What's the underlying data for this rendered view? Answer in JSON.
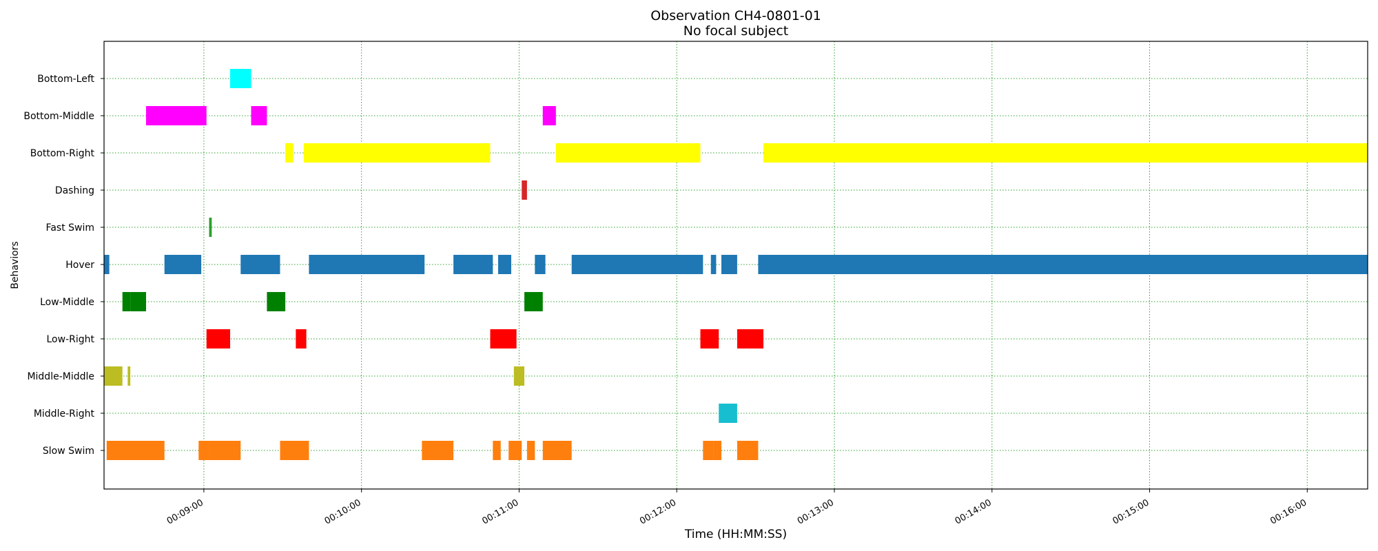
{
  "chart_data": {
    "type": "timeline",
    "title": "Observation CH4-0801-01",
    "subtitle": "No focal subject",
    "xlabel": "Time (HH:MM:SS)",
    "ylabel": "Behaviors",
    "xlim": [
      "00:08:22",
      "00:16:23"
    ],
    "x_ticks": [
      "00:09:00",
      "00:10:00",
      "00:11:00",
      "00:12:00",
      "00:13:00",
      "00:14:00",
      "00:15:00",
      "00:16:00"
    ],
    "grid": true,
    "behaviors": [
      {
        "name": "Bottom-Left",
        "color": "#00ffff",
        "intervals": [
          [
            "00:09:10",
            "00:09:18"
          ]
        ]
      },
      {
        "name": "Bottom-Middle",
        "color": "#ff00ff",
        "intervals": [
          [
            "00:08:38",
            "00:09:01"
          ],
          [
            "00:09:18",
            "00:09:24"
          ],
          [
            "00:11:09",
            "00:11:14"
          ]
        ]
      },
      {
        "name": "Bottom-Right",
        "color": "#ffff00",
        "intervals": [
          [
            "00:09:31",
            "00:09:34"
          ],
          [
            "00:09:38",
            "00:10:49"
          ],
          [
            "00:11:14",
            "00:12:09"
          ],
          [
            "00:12:33",
            "00:16:23"
          ]
        ]
      },
      {
        "name": "Dashing",
        "color": "#d62728",
        "intervals": [
          [
            "00:11:01",
            "00:11:03"
          ]
        ]
      },
      {
        "name": "Fast Swim",
        "color": "#2ca02c",
        "intervals": [
          [
            "00:09:02",
            "00:09:03"
          ]
        ]
      },
      {
        "name": "Hover",
        "color": "#1f77b4",
        "intervals": [
          [
            "00:08:22",
            "00:08:24"
          ],
          [
            "00:08:45",
            "00:08:59"
          ],
          [
            "00:09:14",
            "00:09:29"
          ],
          [
            "00:09:40",
            "00:10:24"
          ],
          [
            "00:10:35",
            "00:10:50"
          ],
          [
            "00:10:52",
            "00:10:57"
          ],
          [
            "00:11:06",
            "00:11:10"
          ],
          [
            "00:11:20",
            "00:12:10"
          ],
          [
            "00:12:13",
            "00:12:15"
          ],
          [
            "00:12:17",
            "00:12:23"
          ],
          [
            "00:12:31",
            "00:16:23"
          ]
        ]
      },
      {
        "name": "Low-Middle",
        "color": "#008000",
        "intervals": [
          [
            "00:08:29",
            "00:08:32"
          ],
          [
            "00:08:32",
            "00:08:38"
          ],
          [
            "00:09:24",
            "00:09:31"
          ],
          [
            "00:11:02",
            "00:11:09"
          ]
        ]
      },
      {
        "name": "Low-Right",
        "color": "#ff0000",
        "intervals": [
          [
            "00:09:01",
            "00:09:10"
          ],
          [
            "00:09:35",
            "00:09:39"
          ],
          [
            "00:10:49",
            "00:10:59"
          ],
          [
            "00:12:09",
            "00:12:16"
          ],
          [
            "00:12:23",
            "00:12:33"
          ]
        ]
      },
      {
        "name": "Middle-Middle",
        "color": "#bcbd22",
        "intervals": [
          [
            "00:08:22",
            "00:08:29"
          ],
          [
            "00:08:31",
            "00:08:32"
          ],
          [
            "00:10:58",
            "00:11:02"
          ]
        ]
      },
      {
        "name": "Middle-Right",
        "color": "#17becf",
        "intervals": [
          [
            "00:12:16",
            "00:12:23"
          ]
        ]
      },
      {
        "name": "Slow Swim",
        "color": "#ff7f0e",
        "intervals": [
          [
            "00:08:23",
            "00:08:45"
          ],
          [
            "00:08:58",
            "00:09:02"
          ],
          [
            "00:09:02",
            "00:09:14"
          ],
          [
            "00:09:29",
            "00:09:40"
          ],
          [
            "00:10:23",
            "00:10:35"
          ],
          [
            "00:10:50",
            "00:10:53"
          ],
          [
            "00:10:56",
            "00:11:01"
          ],
          [
            "00:11:03",
            "00:11:06"
          ],
          [
            "00:11:09",
            "00:11:20"
          ],
          [
            "00:12:10",
            "00:12:14"
          ],
          [
            "00:12:14",
            "00:12:17"
          ],
          [
            "00:12:23",
            "00:12:31"
          ]
        ]
      }
    ]
  }
}
